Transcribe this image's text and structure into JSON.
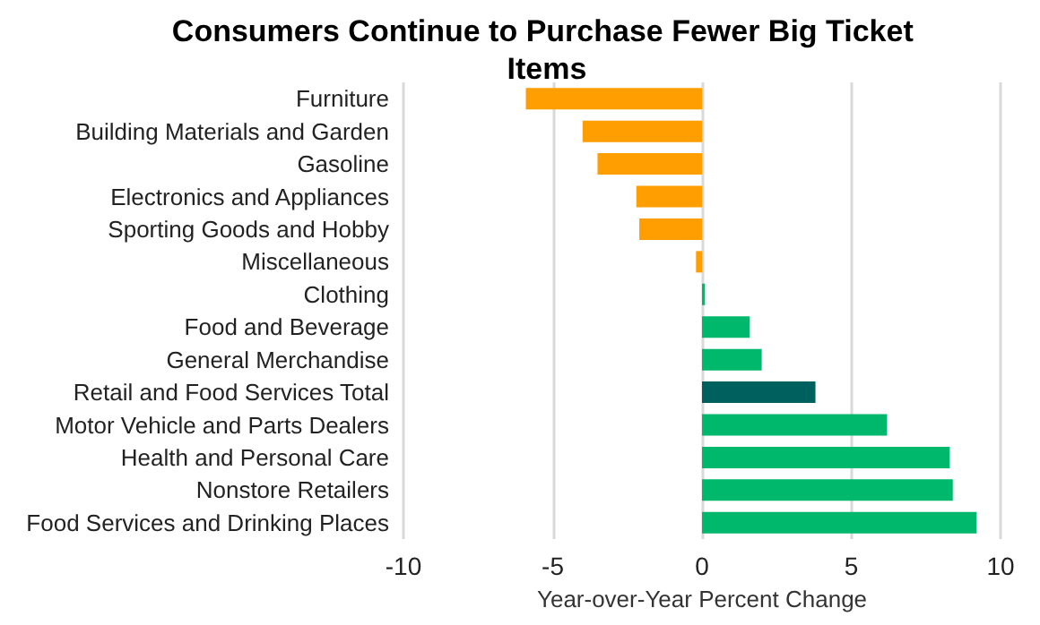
{
  "chart_data": {
    "type": "bar",
    "orientation": "horizontal",
    "title": "Consumers Continue to Purchase Fewer Big Ticket Items",
    "xlabel": "Year-over-Year Percent Change",
    "categories": [
      "Furniture",
      "Building Materials and Garden",
      "Gasoline",
      "Electronics and Appliances",
      "Sporting Goods and Hobby",
      "Miscellaneous",
      "Clothing",
      "Food and Beverage",
      "General Merchandise",
      "Retail and Food Services Total",
      "Motor Vehicle and Parts Dealers",
      "Health and Personal Care",
      "Nonstore Retailers",
      "Food Services and Drinking Places"
    ],
    "values": [
      -5.9,
      -4.0,
      -3.5,
      -2.2,
      -2.1,
      -0.2,
      0.1,
      1.6,
      2.0,
      3.8,
      6.2,
      8.3,
      8.4,
      9.2
    ],
    "colors": [
      "#ff9e00",
      "#ff9e00",
      "#ff9e00",
      "#ff9e00",
      "#ff9e00",
      "#ff9e00",
      "#00b86b",
      "#00b86b",
      "#00b86b",
      "#00605e",
      "#00b86b",
      "#00b86b",
      "#00b86b",
      "#00b86b"
    ],
    "xlim": [
      -10,
      10
    ],
    "xticks": [
      -10,
      -5,
      0,
      5,
      10
    ],
    "grid": "x"
  }
}
